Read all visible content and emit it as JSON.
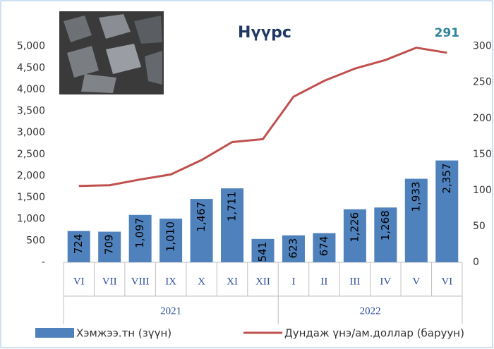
{
  "chart_data": {
    "type": "bar-line",
    "title": "Нүүрс",
    "categories": [
      "VI",
      "VII",
      "VIII",
      "IX",
      "X",
      "XI",
      "XII",
      "I",
      "II",
      "III",
      "IV",
      "V",
      "VI"
    ],
    "categories_level2": [
      "2021",
      null,
      null,
      null,
      null,
      null,
      null,
      "2022",
      null,
      null,
      null,
      null,
      null
    ],
    "series": [
      {
        "name": "Хэмжээ.тн (зүүн)",
        "type": "bar",
        "color": "#4f81bd",
        "values": [
          724,
          709,
          1097,
          1010,
          1467,
          1711,
          541,
          623,
          674,
          1226,
          1268,
          1933,
          2357
        ],
        "value_labels": [
          "724",
          "709",
          "1,097",
          "1,010",
          "1,467",
          "1,711",
          "541",
          "623",
          "674",
          "1,226",
          "1,268",
          "1,933",
          "2,357"
        ]
      },
      {
        "name": "Дундаж үнэ/ам.доллар (баруун)",
        "type": "line",
        "axis": "y2",
        "color": "#c0504d",
        "values": [
          106,
          107,
          115,
          122,
          142,
          167,
          171,
          230,
          252,
          269,
          281,
          298,
          291
        ],
        "value_labels": [
          null,
          null,
          null,
          null,
          null,
          null,
          null,
          null,
          null,
          null,
          null,
          null,
          "291"
        ]
      }
    ],
    "ylim": [
      0,
      5500
    ],
    "yticks": [
      {
        "value": 0,
        "label": "-"
      },
      500,
      {
        "value": 1000,
        "label": "1,000"
      },
      {
        "value": 1500,
        "label": "1,500"
      },
      {
        "value": 2000,
        "label": "2,000"
      },
      {
        "value": 2500,
        "label": "2,500"
      },
      {
        "value": 3000,
        "label": "3,000"
      },
      {
        "value": 3500,
        "label": "3,500"
      },
      {
        "value": 4000,
        "label": "4,000"
      },
      {
        "value": 4500,
        "label": "4,500"
      },
      {
        "value": 5000,
        "label": "5,000"
      }
    ],
    "y2lim": [
      0,
      330
    ],
    "y2ticks": [
      0,
      50,
      100,
      150,
      200,
      250,
      300
    ],
    "legend": "bottom"
  }
}
